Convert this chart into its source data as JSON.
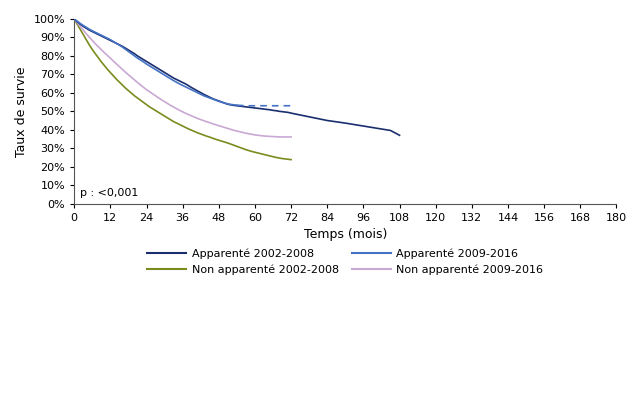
{
  "title": "",
  "xlabel": "Temps (mois)",
  "ylabel": "Taux de survie",
  "xlim": [
    0,
    180
  ],
  "ylim": [
    0,
    1.0
  ],
  "xticks": [
    0,
    12,
    24,
    36,
    48,
    60,
    72,
    84,
    96,
    108,
    120,
    132,
    144,
    156,
    168,
    180
  ],
  "yticks": [
    0.0,
    0.1,
    0.2,
    0.3,
    0.4,
    0.5,
    0.6,
    0.7,
    0.8,
    0.9,
    1.0
  ],
  "p_value_text": "p : <0,001",
  "background_color": "#ffffff",
  "curves": {
    "app_2002_2008": {
      "label": "Apparenté 2002-2008",
      "color": "#1a2e6e",
      "linewidth": 1.2,
      "x": [
        0,
        1,
        2,
        3,
        4,
        5,
        6,
        7,
        8,
        9,
        10,
        11,
        12,
        13,
        14,
        15,
        16,
        17,
        18,
        19,
        20,
        21,
        22,
        23,
        24,
        25,
        26,
        27,
        28,
        29,
        30,
        31,
        32,
        33,
        34,
        35,
        36,
        37,
        38,
        39,
        40,
        41,
        42,
        43,
        44,
        45,
        46,
        47,
        48,
        49,
        50,
        51,
        52,
        53,
        54,
        55,
        56,
        57,
        58,
        59,
        60,
        61,
        62,
        63,
        64,
        65,
        66,
        67,
        68,
        69,
        70,
        71,
        72,
        75,
        78,
        81,
        84,
        87,
        90,
        93,
        96,
        99,
        102,
        105,
        108
      ],
      "y": [
        1.0,
        0.985,
        0.972,
        0.96,
        0.95,
        0.94,
        0.932,
        0.924,
        0.916,
        0.908,
        0.9,
        0.892,
        0.884,
        0.876,
        0.868,
        0.86,
        0.852,
        0.842,
        0.832,
        0.822,
        0.812,
        0.8,
        0.79,
        0.78,
        0.77,
        0.76,
        0.75,
        0.74,
        0.73,
        0.72,
        0.71,
        0.7,
        0.69,
        0.68,
        0.672,
        0.664,
        0.656,
        0.648,
        0.638,
        0.628,
        0.619,
        0.61,
        0.601,
        0.592,
        0.584,
        0.576,
        0.568,
        0.562,
        0.556,
        0.55,
        0.544,
        0.538,
        0.535,
        0.532,
        0.53,
        0.528,
        0.526,
        0.524,
        0.522,
        0.52,
        0.518,
        0.516,
        0.514,
        0.512,
        0.51,
        0.508,
        0.505,
        0.503,
        0.5,
        0.498,
        0.496,
        0.494,
        0.49,
        0.48,
        0.47,
        0.46,
        0.45,
        0.443,
        0.436,
        0.428,
        0.42,
        0.412,
        0.404,
        0.396,
        0.37
      ],
      "dashed_from": null
    },
    "app_2009_2016": {
      "label": "Apparenté 2009-2016",
      "color": "#4472c4",
      "linewidth": 1.2,
      "x": [
        0,
        1,
        2,
        3,
        4,
        5,
        6,
        7,
        8,
        9,
        10,
        11,
        12,
        13,
        14,
        15,
        16,
        17,
        18,
        19,
        20,
        21,
        22,
        23,
        24,
        25,
        26,
        27,
        28,
        29,
        30,
        31,
        32,
        33,
        34,
        35,
        36,
        37,
        38,
        39,
        40,
        41,
        42,
        43,
        44,
        45,
        46,
        47,
        48,
        49,
        50,
        51,
        52,
        53,
        54,
        55,
        56,
        57,
        58,
        59,
        60,
        61,
        62,
        63,
        64,
        65,
        66,
        67,
        68,
        69,
        70,
        71,
        72
      ],
      "y": [
        1.0,
        0.988,
        0.976,
        0.965,
        0.955,
        0.945,
        0.936,
        0.928,
        0.92,
        0.912,
        0.904,
        0.896,
        0.888,
        0.878,
        0.868,
        0.858,
        0.848,
        0.836,
        0.824,
        0.812,
        0.8,
        0.788,
        0.778,
        0.768,
        0.756,
        0.746,
        0.736,
        0.726,
        0.716,
        0.706,
        0.696,
        0.686,
        0.676,
        0.666,
        0.657,
        0.648,
        0.64,
        0.632,
        0.624,
        0.616,
        0.608,
        0.6,
        0.592,
        0.584,
        0.578,
        0.572,
        0.566,
        0.56,
        0.554,
        0.549,
        0.544,
        0.54,
        0.537,
        0.535,
        0.533,
        0.532,
        0.531,
        0.53,
        0.53,
        0.53,
        0.53,
        0.53,
        0.53,
        0.53,
        0.53,
        0.53,
        0.53,
        0.53,
        0.53,
        0.53,
        0.53,
        0.53,
        0.53
      ],
      "dashed_from": 54
    },
    "non_app_2002_2008": {
      "label": "Non apparenté 2002-2008",
      "color": "#7a8c1e",
      "linewidth": 1.2,
      "x": [
        0,
        1,
        2,
        3,
        4,
        5,
        6,
        7,
        8,
        9,
        10,
        11,
        12,
        13,
        14,
        15,
        16,
        17,
        18,
        19,
        20,
        21,
        22,
        23,
        24,
        25,
        26,
        27,
        28,
        29,
        30,
        31,
        32,
        33,
        34,
        35,
        36,
        37,
        38,
        39,
        40,
        41,
        42,
        43,
        44,
        45,
        46,
        47,
        48,
        49,
        50,
        51,
        52,
        53,
        54,
        55,
        56,
        57,
        58,
        59,
        60,
        61,
        62,
        63,
        64,
        65,
        66,
        67,
        68,
        69,
        70,
        71,
        72
      ],
      "y": [
        1.0,
        0.972,
        0.944,
        0.916,
        0.888,
        0.86,
        0.835,
        0.812,
        0.79,
        0.768,
        0.748,
        0.728,
        0.71,
        0.692,
        0.674,
        0.658,
        0.642,
        0.626,
        0.612,
        0.598,
        0.584,
        0.572,
        0.56,
        0.548,
        0.536,
        0.524,
        0.514,
        0.504,
        0.494,
        0.484,
        0.474,
        0.464,
        0.454,
        0.444,
        0.436,
        0.428,
        0.42,
        0.412,
        0.404,
        0.397,
        0.39,
        0.383,
        0.377,
        0.371,
        0.365,
        0.36,
        0.354,
        0.348,
        0.343,
        0.338,
        0.333,
        0.328,
        0.322,
        0.316,
        0.31,
        0.304,
        0.298,
        0.292,
        0.287,
        0.282,
        0.278,
        0.274,
        0.27,
        0.266,
        0.262,
        0.258,
        0.254,
        0.25,
        0.247,
        0.244,
        0.242,
        0.24,
        0.238
      ],
      "dashed_from": null
    },
    "non_app_2009_2016": {
      "label": "Non apparenté 2009-2016",
      "color": "#c9a8d4",
      "linewidth": 1.2,
      "x": [
        0,
        1,
        2,
        3,
        4,
        5,
        6,
        7,
        8,
        9,
        10,
        11,
        12,
        13,
        14,
        15,
        16,
        17,
        18,
        19,
        20,
        21,
        22,
        23,
        24,
        25,
        26,
        27,
        28,
        29,
        30,
        31,
        32,
        33,
        34,
        35,
        36,
        37,
        38,
        39,
        40,
        41,
        42,
        43,
        44,
        45,
        46,
        47,
        48,
        49,
        50,
        51,
        52,
        53,
        54,
        55,
        56,
        57,
        58,
        59,
        60,
        61,
        62,
        63,
        64,
        65,
        66,
        67,
        68,
        69,
        70,
        71,
        72
      ],
      "y": [
        1.0,
        0.98,
        0.96,
        0.94,
        0.92,
        0.902,
        0.884,
        0.866,
        0.85,
        0.834,
        0.818,
        0.803,
        0.788,
        0.772,
        0.757,
        0.742,
        0.727,
        0.712,
        0.698,
        0.684,
        0.67,
        0.656,
        0.643,
        0.63,
        0.617,
        0.606,
        0.595,
        0.584,
        0.573,
        0.562,
        0.552,
        0.542,
        0.532,
        0.523,
        0.514,
        0.505,
        0.497,
        0.489,
        0.482,
        0.475,
        0.468,
        0.461,
        0.455,
        0.449,
        0.443,
        0.438,
        0.432,
        0.427,
        0.422,
        0.417,
        0.412,
        0.407,
        0.402,
        0.397,
        0.393,
        0.389,
        0.385,
        0.381,
        0.378,
        0.375,
        0.372,
        0.37,
        0.368,
        0.366,
        0.365,
        0.364,
        0.363,
        0.362,
        0.361,
        0.361,
        0.361,
        0.361,
        0.361
      ],
      "dashed_from": null
    }
  }
}
